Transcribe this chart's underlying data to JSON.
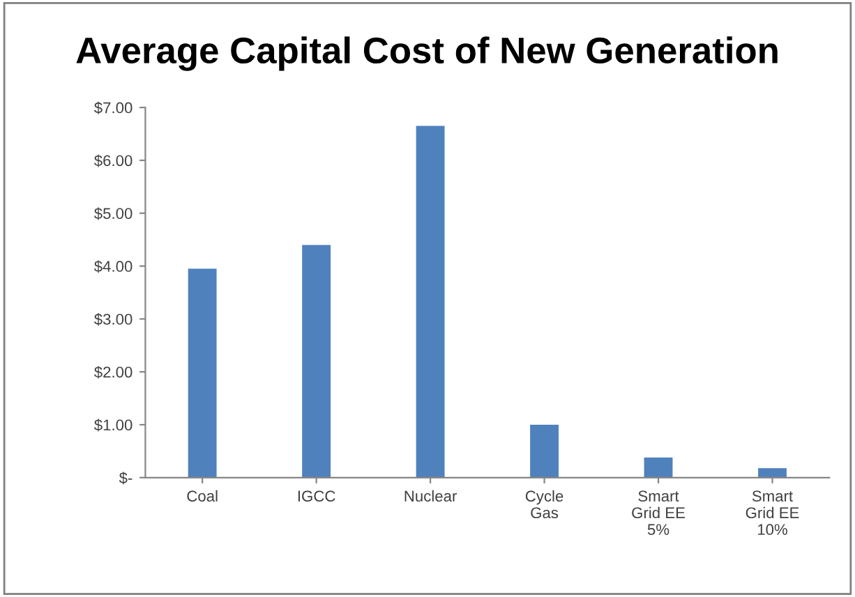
{
  "chart_data": {
    "type": "bar",
    "title": "Average Capital Cost of New Generation",
    "categories": [
      "Coal",
      "IGCC",
      "Nuclear",
      "Cycle\nGas",
      "Smart\nGrid EE\n5%",
      "Smart\nGrid EE\n10%"
    ],
    "values": [
      3.95,
      4.4,
      6.65,
      1.0,
      0.38,
      0.18
    ],
    "color": "#4f81bd",
    "ylim": [
      0,
      7
    ],
    "yticks": [
      {
        "value": 0,
        "label": "$-"
      },
      {
        "value": 1,
        "label": "$1.00"
      },
      {
        "value": 2,
        "label": "$2.00"
      },
      {
        "value": 3,
        "label": "$3.00"
      },
      {
        "value": 4,
        "label": "$4.00"
      },
      {
        "value": 5,
        "label": "$5.00"
      },
      {
        "value": 6,
        "label": "$6.00"
      },
      {
        "value": 7,
        "label": "$7.00"
      }
    ],
    "grid": false,
    "legend": false
  }
}
